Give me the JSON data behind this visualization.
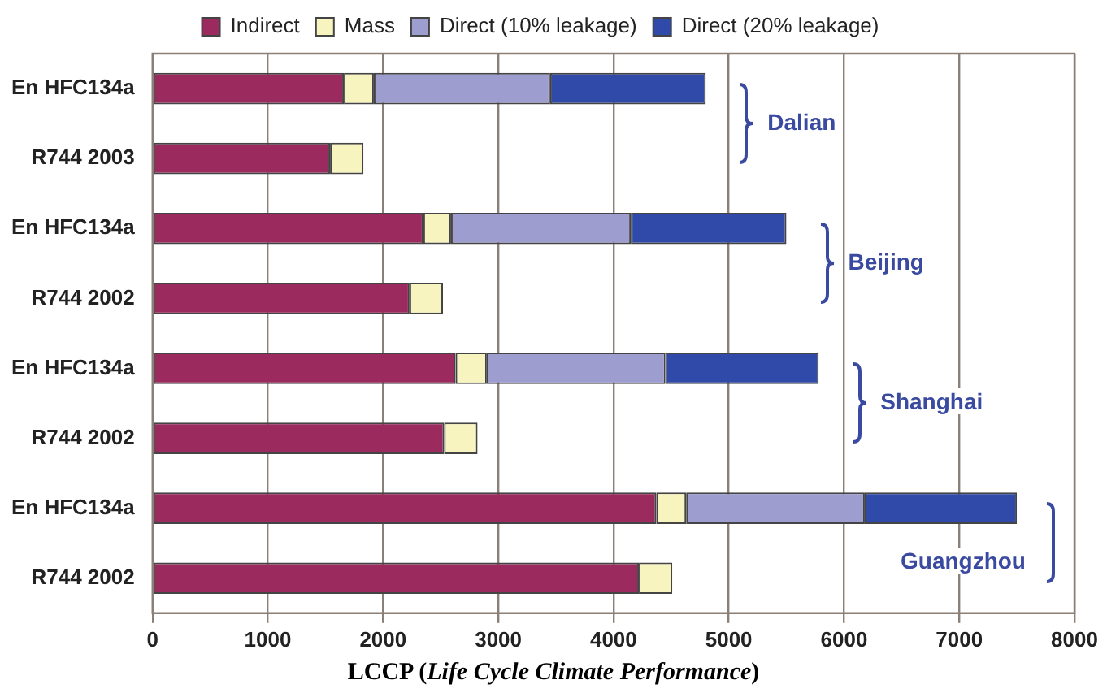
{
  "chart_data": {
    "type": "bar",
    "orientation": "horizontal",
    "stacked": true,
    "categories": [
      "En HFC134a",
      "R744 2003",
      "En HFC134a",
      "R744 2002",
      "En HFC134a",
      "R744 2002",
      "En HFC134a",
      "R744 2002"
    ],
    "series": [
      {
        "name": "Indirect",
        "color": "#9b2a5e",
        "values": [
          1660,
          1540,
          2350,
          2230,
          2630,
          2530,
          4370,
          4220
        ]
      },
      {
        "name": "Mass",
        "color": "#f8f4c0",
        "values": [
          260,
          290,
          240,
          290,
          270,
          290,
          260,
          290
        ]
      },
      {
        "name": "Direct (10% leakage)",
        "color": "#9e9dd0",
        "values": [
          1530,
          null,
          1560,
          null,
          1550,
          null,
          1550,
          null
        ]
      },
      {
        "name": "Direct (20% leakage)",
        "color": "#2f4aa8",
        "values": [
          1350,
          null,
          1350,
          null,
          1330,
          null,
          1320,
          null
        ]
      }
    ],
    "xlabel": "LCCP (Life Cycle Climate Performance)",
    "xlim": [
      0,
      8000
    ],
    "xticks": [
      0,
      1000,
      2000,
      3000,
      4000,
      5000,
      6000,
      7000,
      8000
    ],
    "annotations": [
      "Dalian",
      "Beijing",
      "Shanghai",
      "Guangzhou"
    ],
    "grid": "x",
    "legend": "top"
  }
}
